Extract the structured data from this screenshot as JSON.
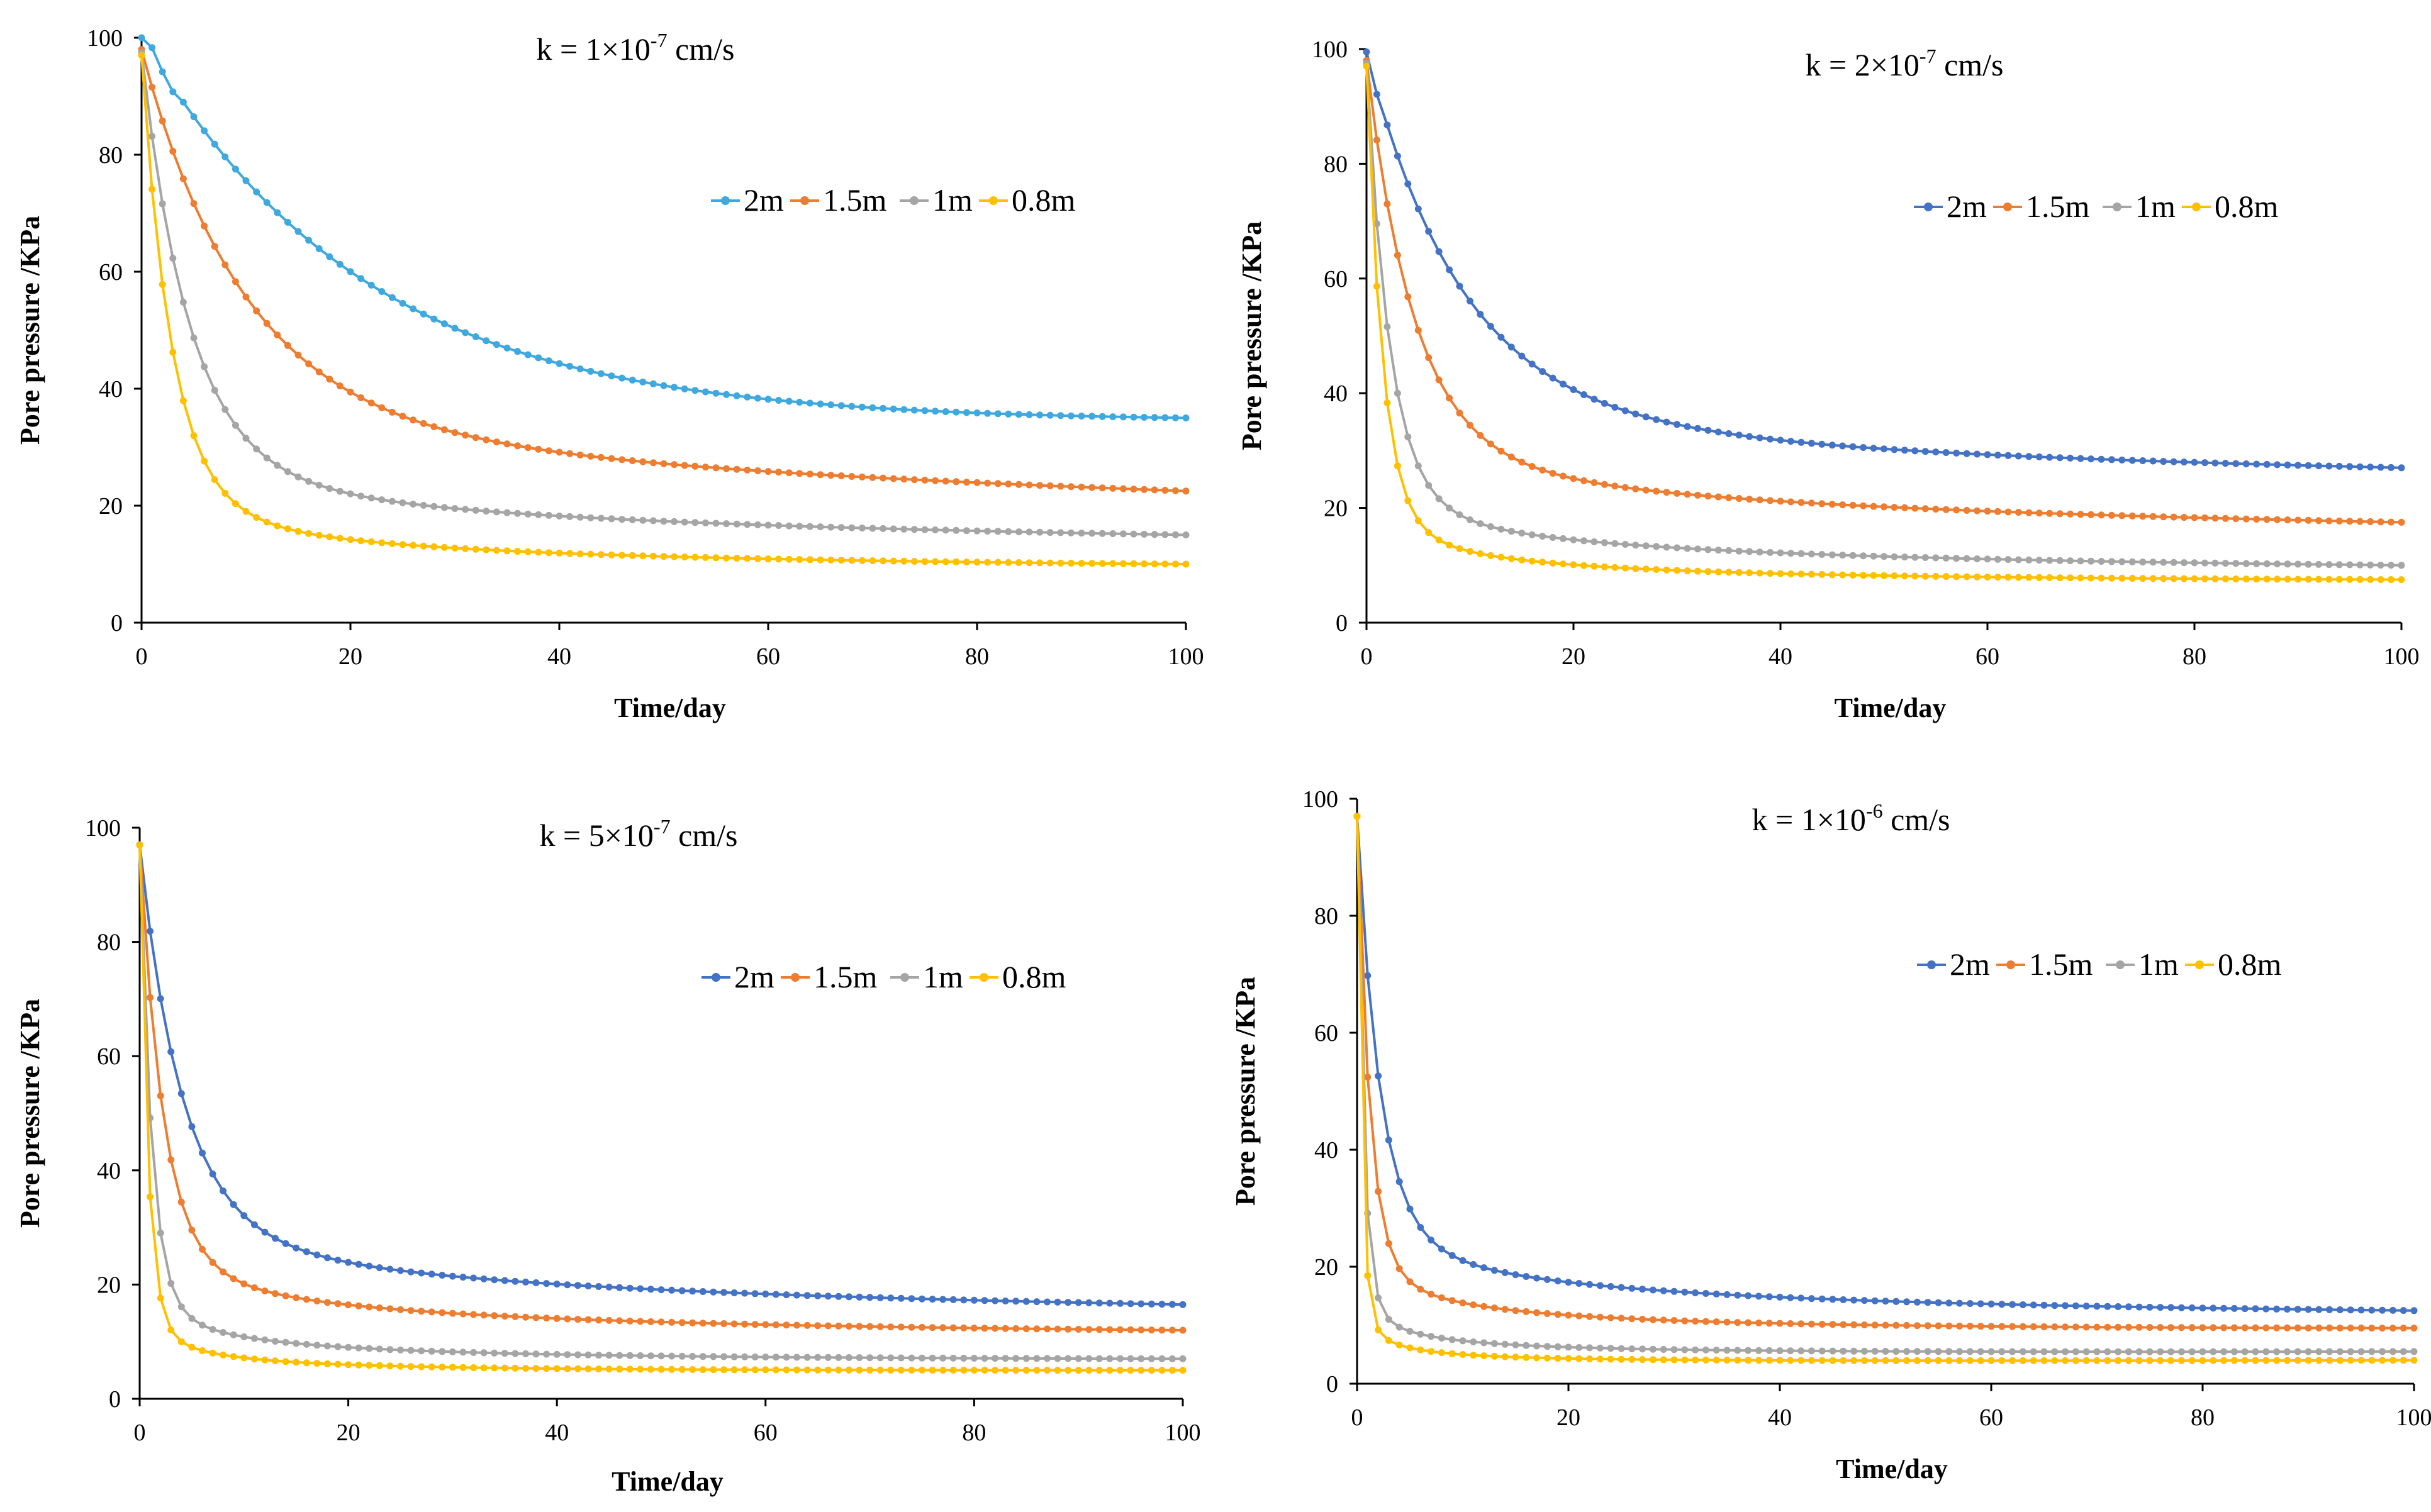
{
  "chart_data": [
    {
      "type": "line",
      "title": {
        "prefix": "k = 1×10",
        "exponent": "-7",
        "suffix": " cm/s"
      },
      "xlabel": "Time/day",
      "ylabel": "Pore pressure /KPa",
      "xlim": [
        0,
        100
      ],
      "ylim": [
        0,
        100
      ],
      "xticks": [
        "0",
        "20",
        "40",
        "60",
        "80",
        "100"
      ],
      "yticks": [
        "0",
        "20",
        "40",
        "60",
        "80",
        "100"
      ],
      "legend_position": "upper-right",
      "series": [
        {
          "name": "2m",
          "color": "#3FA9DF",
          "curve": {
            "p0": 100,
            "rise_days": 3.5,
            "a": 0.62,
            "tau1": 20,
            "b": 0.38,
            "p": 0.15
          }
        },
        {
          "name": "1.5m",
          "color": "#ED7D31",
          "curve": {
            "p0": 98,
            "rise_days": 0,
            "a": 0.58,
            "tau1": 10,
            "b": 0.42,
            "p": 0.2
          }
        },
        {
          "name": "1m",
          "color": "#A5A5A5",
          "curve": {
            "p0": 97.5,
            "rise_days": 0,
            "a": 0.65,
            "tau1": 4.5,
            "b": 0.35,
            "p": 0.3
          }
        },
        {
          "name": "0.8m",
          "color": "#FFC000",
          "curve": {
            "p0": 97,
            "rise_days": 0,
            "a": 0.7,
            "tau1": 2.8,
            "b": 0.3,
            "p": 0.4
          }
        }
      ],
      "sample_days": [
        0,
        100,
        1
      ],
      "endpoints": {
        "2m": 35,
        "1.5m": 22.5,
        "1m": 15,
        "0.8m": 10
      }
    },
    {
      "type": "line",
      "title": {
        "prefix": "k = 2×10",
        "exponent": "-7",
        "suffix": " cm/s"
      },
      "xlabel": "Time/day",
      "ylabel": "Pore pressure /KPa",
      "xlim": [
        0,
        100
      ],
      "ylim": [
        0,
        100
      ],
      "xticks": [
        "0",
        "20",
        "40",
        "60",
        "80",
        "100"
      ],
      "yticks": [
        "0",
        "20",
        "40",
        "60",
        "80",
        "100"
      ],
      "legend_position": "upper-right",
      "series": [
        {
          "name": "2m",
          "color": "#4472C4",
          "curve": {
            "p0": 99.5,
            "rise_days": 1.2,
            "a": 0.56,
            "tau1": 9,
            "b": 0.44,
            "p": 0.22
          }
        },
        {
          "name": "1.5m",
          "color": "#ED7D31",
          "curve": {
            "p0": 98,
            "rise_days": 0,
            "a": 0.62,
            "tau1": 4.5,
            "b": 0.38,
            "p": 0.26
          }
        },
        {
          "name": "1m",
          "color": "#A5A5A5",
          "curve": {
            "p0": 97.5,
            "rise_days": 0,
            "a": 0.7,
            "tau1": 2.2,
            "b": 0.3,
            "p": 0.33
          }
        },
        {
          "name": "0.8m",
          "color": "#FFC000",
          "curve": {
            "p0": 97,
            "rise_days": 0,
            "a": 0.72,
            "tau1": 1.5,
            "b": 0.28,
            "p": 0.45
          }
        }
      ],
      "sample_days": [
        0,
        100,
        1
      ],
      "endpoints": {
        "2m": 27,
        "1.5m": 17.5,
        "1m": 10,
        "0.8m": 7.5
      }
    },
    {
      "type": "line",
      "title": {
        "prefix": "k = 5×10",
        "exponent": "-7",
        "suffix": " cm/s"
      },
      "xlabel": "Time/day",
      "ylabel": "Pore pressure /KPa",
      "xlim": [
        0,
        100
      ],
      "ylim": [
        0,
        100
      ],
      "xticks": [
        "0",
        "20",
        "40",
        "60",
        "80",
        "100"
      ],
      "yticks": [
        "0",
        "20",
        "40",
        "60",
        "80",
        "100"
      ],
      "legend_position": "upper-right",
      "series": [
        {
          "name": "2m",
          "color": "#4472C4",
          "curve": {
            "p0": 97,
            "rise_days": 0,
            "a": 0.6,
            "tau1": 4,
            "b": 0.4,
            "p": 0.3
          }
        },
        {
          "name": "1.5m",
          "color": "#ED7D31",
          "curve": {
            "p0": 97,
            "rise_days": 0,
            "a": 0.66,
            "tau1": 2.2,
            "b": 0.34,
            "p": 0.34
          }
        },
        {
          "name": "1m",
          "color": "#A5A5A5",
          "curve": {
            "p0": 97,
            "rise_days": 0,
            "a": 0.74,
            "tau1": 1.1,
            "b": 0.26,
            "p": 0.42
          }
        },
        {
          "name": "0.8m",
          "color": "#FFC000",
          "curve": {
            "p0": 97,
            "rise_days": 0,
            "a": 0.78,
            "tau1": 0.75,
            "b": 0.22,
            "p": 0.5
          }
        }
      ],
      "sample_days": [
        0,
        100,
        1
      ],
      "endpoints": {
        "2m": 16.5,
        "1.5m": 12,
        "1m": 7,
        "0.8m": 5
      }
    },
    {
      "type": "line",
      "title": {
        "prefix": "k = 1×10",
        "exponent": "-6",
        "suffix": " cm/s"
      },
      "xlabel": "Time/day",
      "ylabel": "Pore pressure /KPa",
      "xlim": [
        0,
        100
      ],
      "ylim": [
        0,
        100
      ],
      "xticks": [
        "0",
        "20",
        "40",
        "60",
        "80",
        "100"
      ],
      "yticks": [
        "0",
        "20",
        "40",
        "60",
        "80",
        "100"
      ],
      "legend_position": "upper-right",
      "series": [
        {
          "name": "2m",
          "color": "#4472C4",
          "curve": {
            "p0": 97,
            "rise_days": 0,
            "a": 0.64,
            "tau1": 2.1,
            "b": 0.36,
            "p": 0.33
          }
        },
        {
          "name": "1.5m",
          "color": "#ED7D31",
          "curve": {
            "p0": 97,
            "rise_days": 0,
            "a": 0.7,
            "tau1": 1.15,
            "b": 0.3,
            "p": 0.38
          }
        },
        {
          "name": "1m",
          "color": "#A5A5A5",
          "curve": {
            "p0": 97,
            "rise_days": 0,
            "a": 0.78,
            "tau1": 0.6,
            "b": 0.22,
            "p": 0.45
          }
        },
        {
          "name": "0.8m",
          "color": "#FFC000",
          "curve": {
            "p0": 97,
            "rise_days": 0,
            "a": 0.8,
            "tau1": 0.42,
            "b": 0.2,
            "p": 0.55
          }
        }
      ],
      "sample_days": [
        0,
        100,
        1
      ],
      "endpoints": {
        "2m": 12.5,
        "1.5m": 9.5,
        "1m": 5.5,
        "0.8m": 4
      }
    }
  ]
}
